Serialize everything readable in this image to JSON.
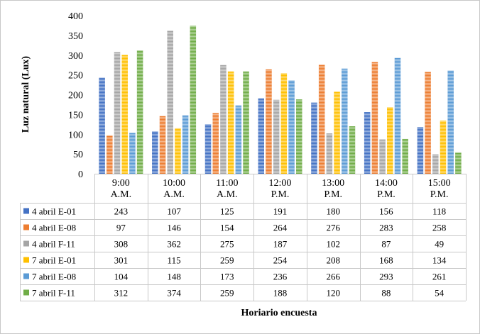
{
  "chart_data": {
    "type": "bar",
    "title": "",
    "xlabel": "Horiario  encuesta",
    "ylabel": "Luz natural (Lux)",
    "ylim": [
      0,
      400
    ],
    "yticks": [
      0,
      50,
      100,
      150,
      200,
      250,
      300,
      350,
      400
    ],
    "grid": false,
    "legend": "data-table-left",
    "categories": [
      [
        "9:00",
        "A.M."
      ],
      [
        "10:00",
        "A.M."
      ],
      [
        "11:00",
        "A.M."
      ],
      [
        "12:00",
        "P.M."
      ],
      [
        "13:00",
        "P.M."
      ],
      [
        "14:00",
        "P.M."
      ],
      [
        "15:00",
        "P.M."
      ]
    ],
    "series": [
      {
        "name": "4 abril E-01",
        "color": "#4472C4",
        "values": [
          243,
          107,
          125,
          191,
          180,
          156,
          118
        ]
      },
      {
        "name": "4 abril E-08",
        "color": "#ED7D31",
        "values": [
          97,
          146,
          154,
          264,
          276,
          283,
          258
        ]
      },
      {
        "name": "4 abril F-11",
        "color": "#A5A5A5",
        "values": [
          308,
          362,
          275,
          187,
          102,
          87,
          49
        ]
      },
      {
        "name": "7 abril E-01",
        "color": "#FFC000",
        "values": [
          301,
          115,
          259,
          254,
          208,
          168,
          134
        ]
      },
      {
        "name": "7 abril E-08",
        "color": "#5B9BD5",
        "values": [
          104,
          148,
          173,
          236,
          266,
          293,
          261
        ]
      },
      {
        "name": "7 abril F-11",
        "color": "#70AD47",
        "values": [
          312,
          374,
          259,
          188,
          120,
          88,
          54
        ]
      }
    ]
  }
}
